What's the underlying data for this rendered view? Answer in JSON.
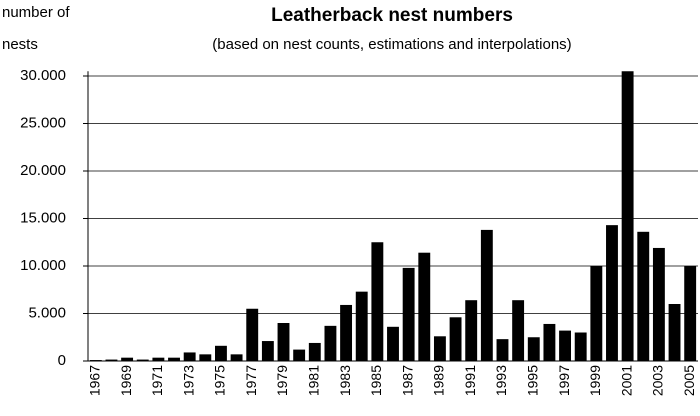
{
  "chart_data": {
    "type": "bar",
    "title": "Leatherback nest numbers",
    "subtitle": "(based on nest counts, estimations and interpolations)",
    "ylabel": [
      "number of",
      "nests"
    ],
    "categories": [
      "1967",
      null,
      "1969",
      null,
      "1971",
      null,
      "1973",
      null,
      "1975",
      null,
      "1977",
      null,
      "1979",
      null,
      "1981",
      null,
      "1983",
      null,
      "1985",
      null,
      "1987",
      null,
      "1989",
      null,
      "1991",
      null,
      "1993",
      null,
      "1995",
      null,
      "1997",
      null,
      "1999",
      null,
      "2001",
      null,
      "2003",
      null,
      "2005"
    ],
    "values": [
      100,
      150,
      350,
      150,
      350,
      350,
      900,
      700,
      1600,
      700,
      5500,
      2100,
      4000,
      1200,
      1900,
      3700,
      5900,
      7300,
      12500,
      3600,
      9800,
      11400,
      2600,
      4600,
      6400,
      13800,
      2300,
      6400,
      2500,
      3900,
      3200,
      3000,
      10000,
      14300,
      30500,
      13600,
      11900,
      6000,
      10000
    ],
    "color": "#000000",
    "ylim": [
      0,
      30500
    ],
    "yticks": [
      0,
      {
        "value": 5000,
        "label": "5.000"
      },
      {
        "value": 10000,
        "label": "10.000"
      },
      {
        "value": 15000,
        "label": "15.000"
      },
      {
        "value": 20000,
        "label": "20.000"
      },
      {
        "value": 25000,
        "label": "25.000"
      },
      {
        "value": 30000,
        "label": "30.000"
      }
    ],
    "grid": true
  }
}
